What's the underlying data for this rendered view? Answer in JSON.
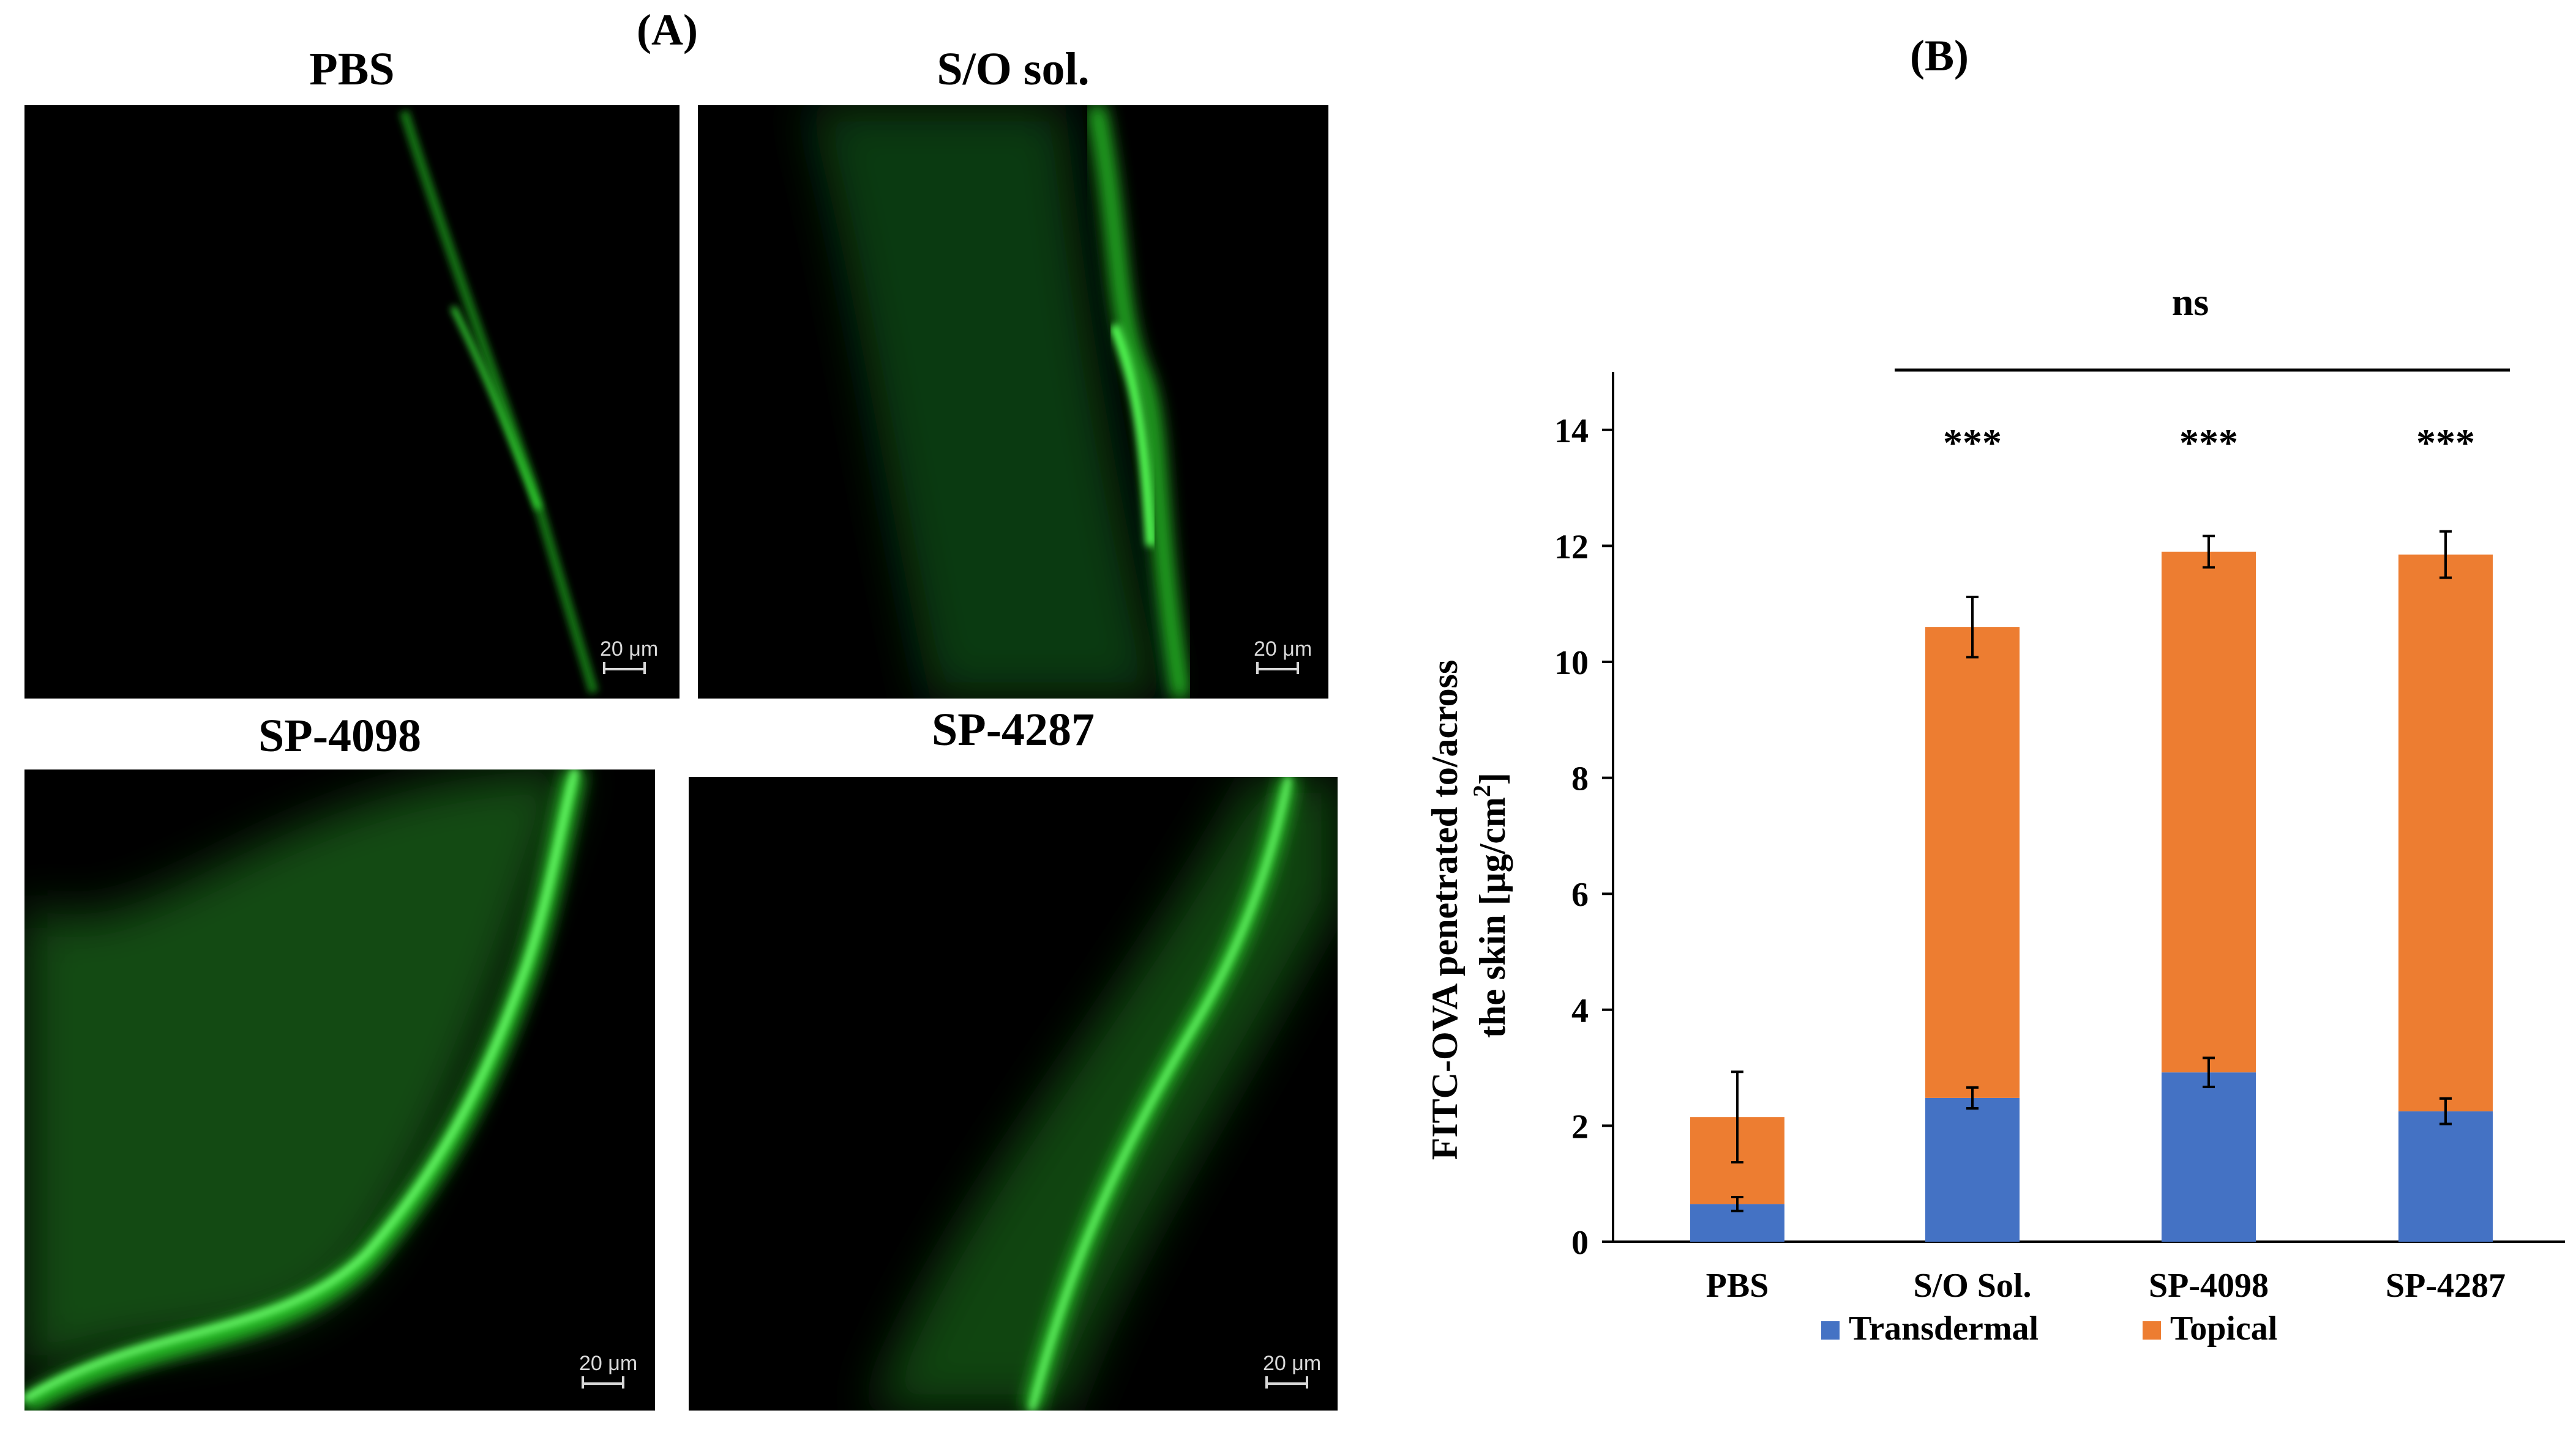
{
  "figure": {
    "panel_a_label": "(A)",
    "panel_b_label": "(B)"
  },
  "micrographs": [
    {
      "title": "PBS",
      "scale": "20 μm"
    },
    {
      "title": "S/O sol.",
      "scale": "20 μm"
    },
    {
      "title": "SP-4098",
      "scale": "20 μm"
    },
    {
      "title": "SP-4287",
      "scale": "20 μm"
    }
  ],
  "chart_data": {
    "type": "bar",
    "stacked": true,
    "categories": [
      "PBS",
      "S/O Sol.",
      "SP-4098",
      "SP-4287"
    ],
    "series": [
      {
        "name": "Transdermal",
        "color": "#4472c4",
        "values": [
          0.65,
          2.48,
          2.92,
          2.25
        ],
        "errors": [
          0.12,
          0.18,
          0.25,
          0.22
        ]
      },
      {
        "name": "Topical",
        "color": "#ed7d31",
        "values": [
          1.5,
          8.12,
          8.98,
          9.6
        ],
        "errors": [
          0.78,
          0.52,
          0.27,
          0.4
        ]
      }
    ],
    "ylabel_line1": "FITC-OVA penetrated to/across",
    "ylabel_line2": "the skin [μg/cm",
    "ylabel_sup": "2",
    "ylabel_end": "]",
    "ylim": [
      0,
      15
    ],
    "yticks": [
      0,
      2,
      4,
      6,
      8,
      10,
      12,
      14
    ],
    "significance": [
      "",
      "***",
      "***",
      "***"
    ],
    "comparison_label": "ns",
    "legend_position": "bottom-center",
    "grid": false
  }
}
